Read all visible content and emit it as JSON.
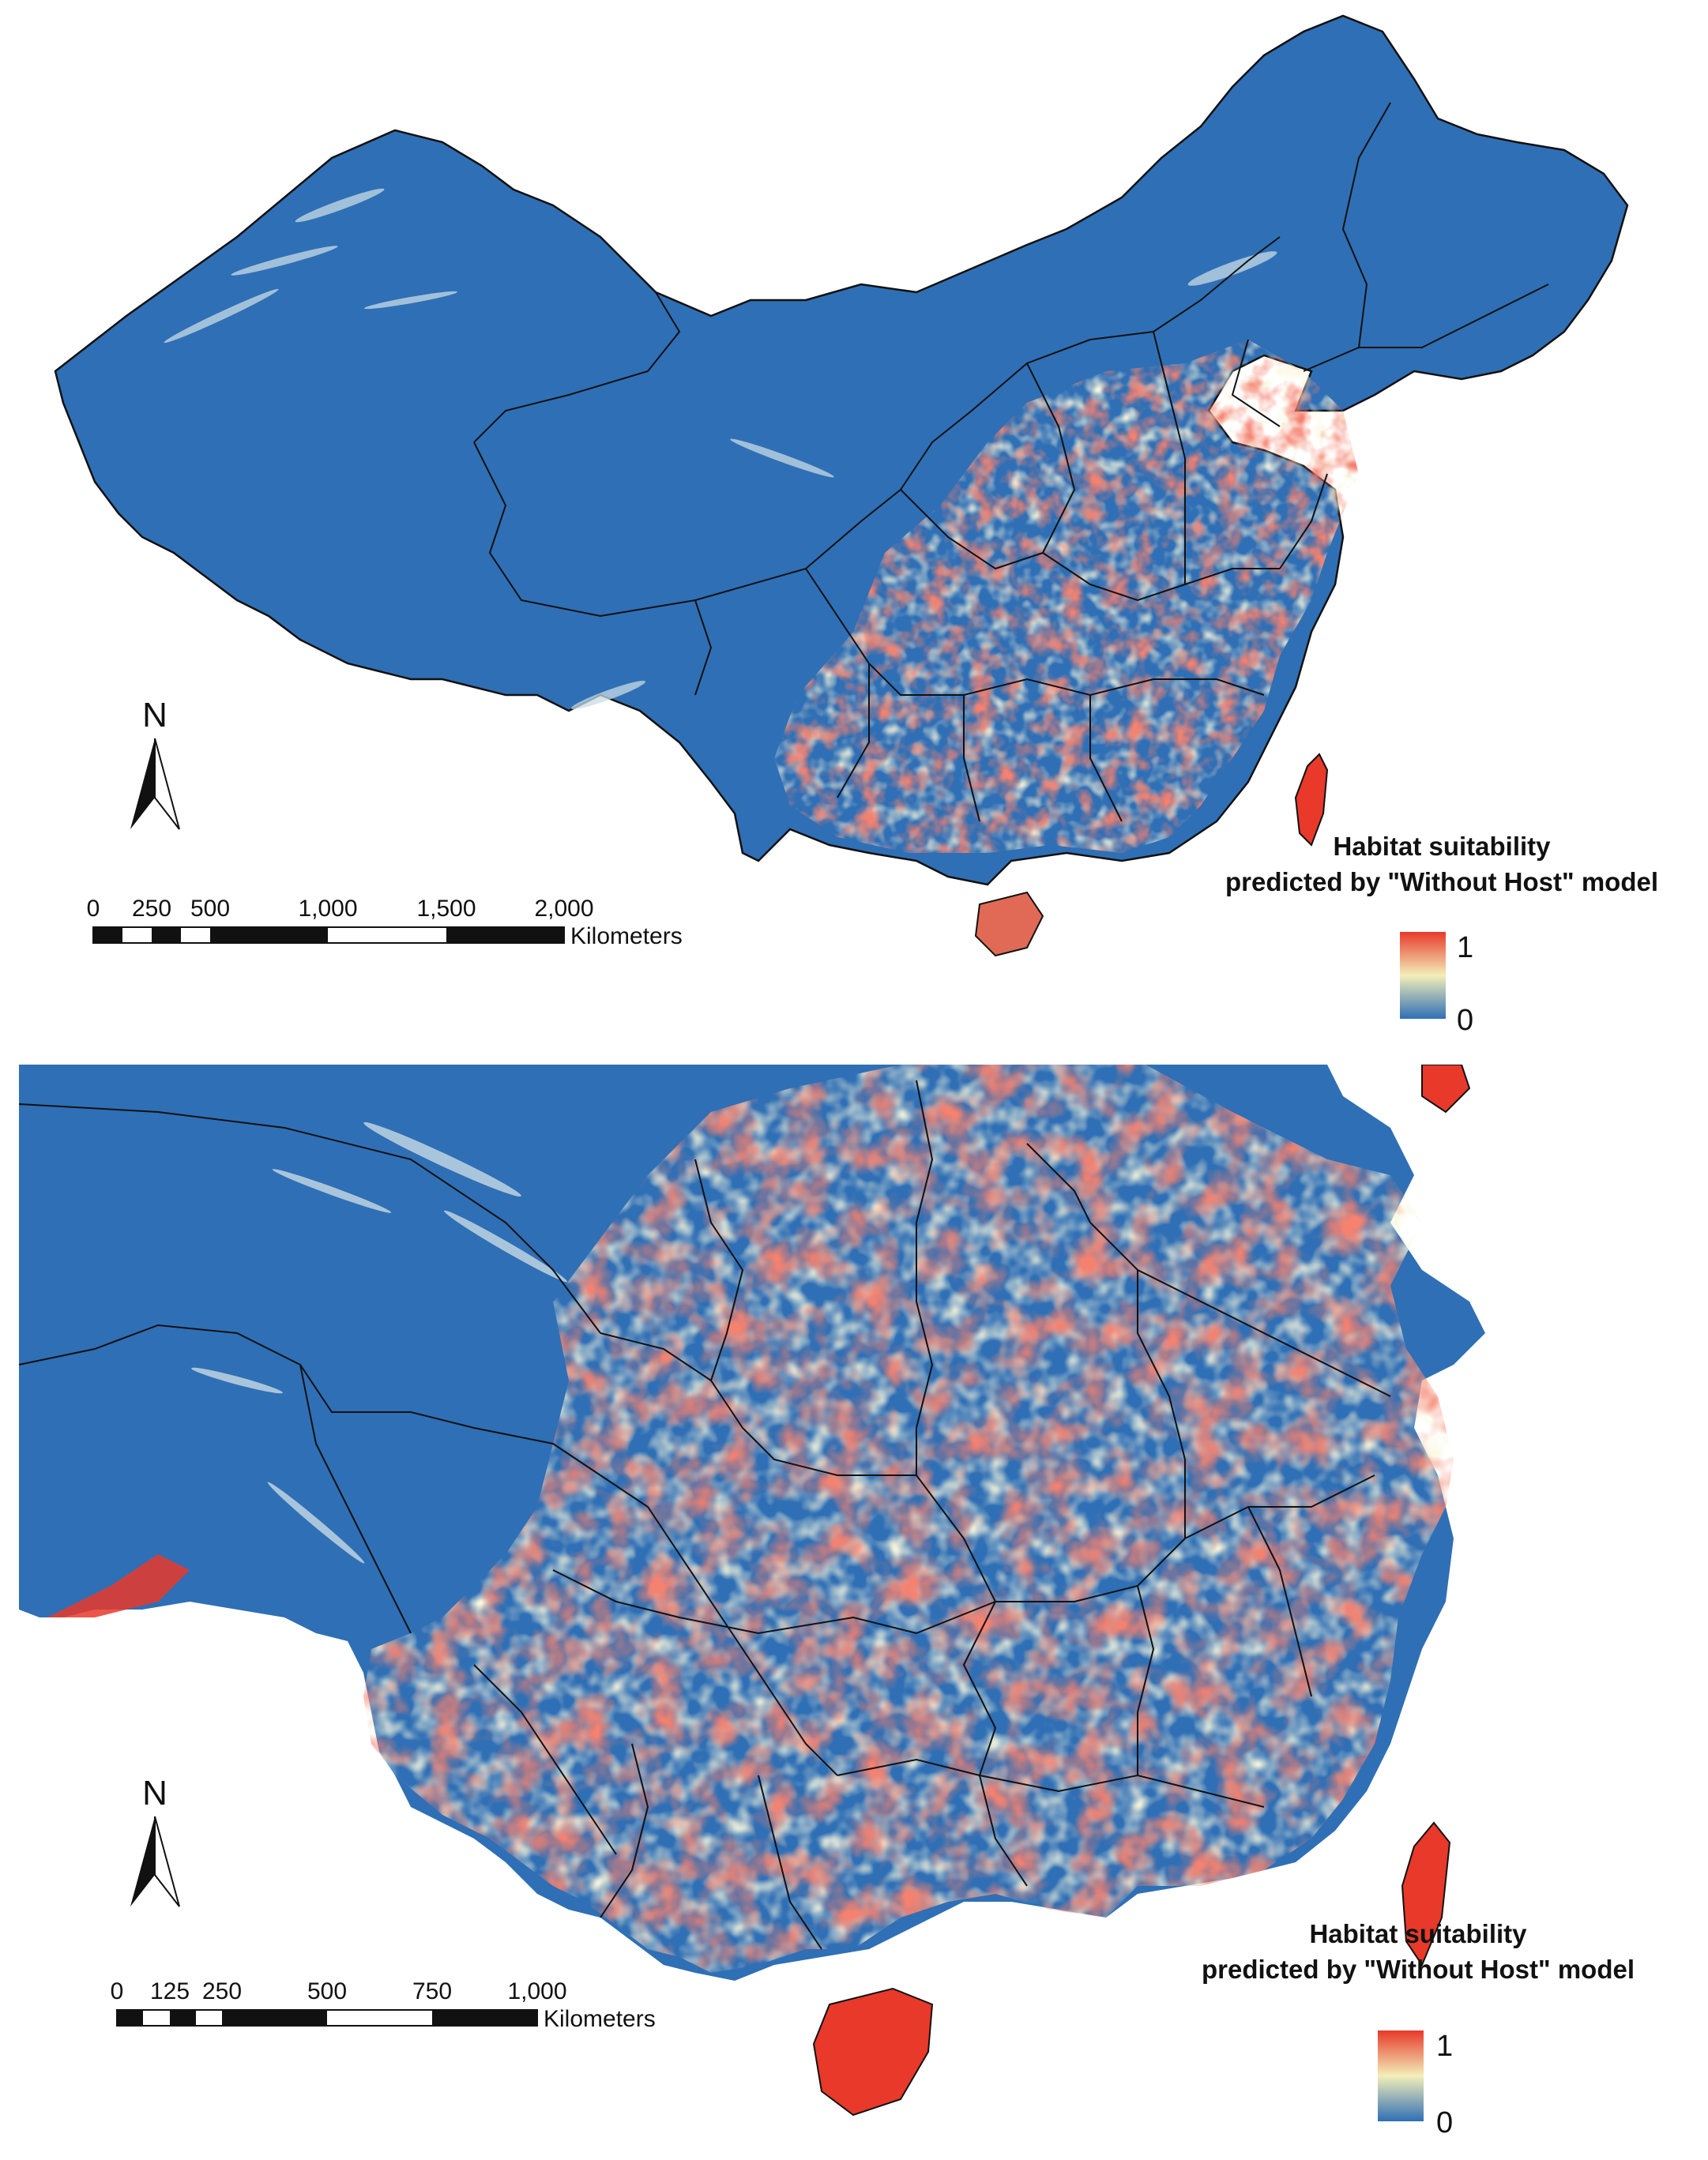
{
  "panels": [
    {
      "id": "top",
      "north_label": "N",
      "scale": {
        "ticks": [
          "0",
          "250",
          "500",
          "1,000",
          "1,500",
          "2,000"
        ],
        "unit": "Kilometers"
      },
      "legend": {
        "title_line1": "Habitat suitability",
        "title_line2": "predicted by \"Without Host\" model",
        "max_label": "1",
        "min_label": "0"
      }
    },
    {
      "id": "bottom",
      "north_label": "N",
      "scale": {
        "ticks": [
          "0",
          "125",
          "250",
          "500",
          "750",
          "1,000"
        ],
        "unit": "Kilometers"
      },
      "legend": {
        "title_line1": "Habitat suitability",
        "title_line2": "predicted by \"Without Host\" model",
        "max_label": "1",
        "min_label": "0"
      }
    }
  ],
  "colors": {
    "low": "#2f6fb5",
    "mid": "#f3eeb9",
    "high": "#e8392a",
    "sea": "#ffffff",
    "border": "#111111"
  }
}
